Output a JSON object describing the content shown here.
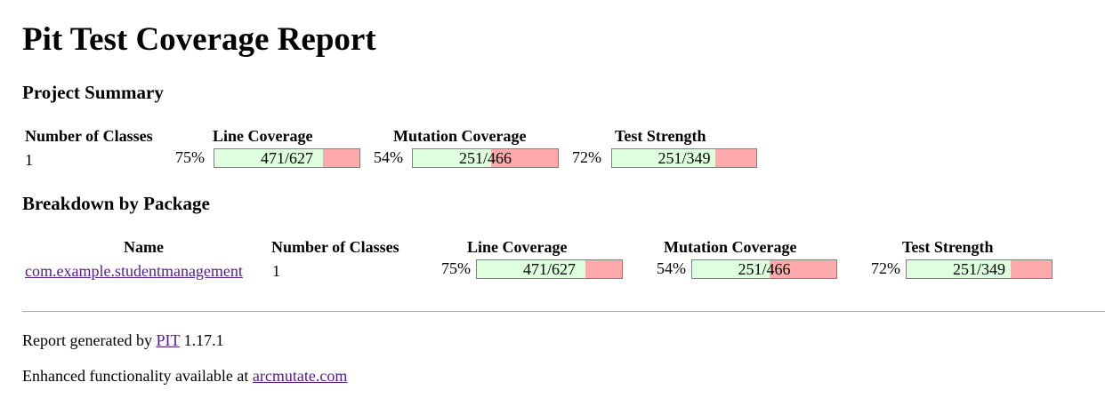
{
  "title": "Pit Test Coverage Report",
  "project_summary": {
    "heading": "Project Summary",
    "headers": {
      "classes": "Number of Classes",
      "line": "Line Coverage",
      "mutation": "Mutation Coverage",
      "strength": "Test Strength"
    },
    "row": {
      "classes": "1",
      "line_pct": "75%",
      "line_ratio": "471/627",
      "line_fraction": 0.751,
      "mutation_pct": "54%",
      "mutation_ratio": "251/466",
      "mutation_fraction": 0.539,
      "strength_pct": "72%",
      "strength_ratio": "251/349",
      "strength_fraction": 0.719
    }
  },
  "breakdown": {
    "heading": "Breakdown by Package",
    "headers": {
      "name": "Name",
      "classes": "Number of Classes",
      "line": "Line Coverage",
      "mutation": "Mutation Coverage",
      "strength": "Test Strength"
    },
    "rows": [
      {
        "name": "com.example.studentmanagement",
        "classes": "1",
        "line_pct": "75%",
        "line_ratio": "471/627",
        "line_fraction": 0.751,
        "mutation_pct": "54%",
        "mutation_ratio": "251/466",
        "mutation_fraction": 0.539,
        "strength_pct": "72%",
        "strength_ratio": "251/349",
        "strength_fraction": 0.719
      }
    ]
  },
  "footer": {
    "generated_prefix": "Report generated by",
    "pit_link": "PIT",
    "version": "1.17.1",
    "enhanced_prefix": "Enhanced functionality available at",
    "arcmutate_link": "arcmutate.com"
  },
  "colors": {
    "covered": "#ddffdd",
    "uncovered": "#ffaaaa",
    "link": "#551a8b"
  }
}
